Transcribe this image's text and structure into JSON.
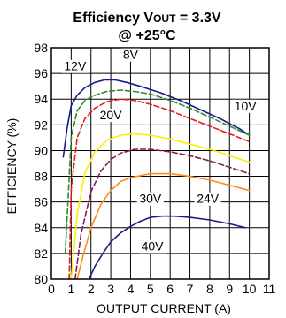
{
  "chart_data": {
    "type": "line",
    "title": {
      "prefix": "Efficiency V",
      "subscript": "OUT",
      "suffix": " = 3.3V",
      "line2": "@ +25°C"
    },
    "xlabel": "OUTPUT CURRENT (A)",
    "ylabel": "EFFICIENCY (%)",
    "xlim": [
      0,
      11
    ],
    "ylim": [
      80,
      98
    ],
    "xticks": [
      0,
      1,
      2,
      3,
      4,
      5,
      6,
      7,
      8,
      9,
      10,
      11
    ],
    "yticks": [
      80,
      82,
      84,
      86,
      88,
      90,
      92,
      94,
      96,
      98
    ],
    "grid": true,
    "series": [
      {
        "name": "8V",
        "color": "#1a1a8c",
        "dash": "solid",
        "x": [
          0.6,
          0.8,
          1.0,
          1.3,
          1.7,
          2.2,
          2.7,
          3.2,
          3.8,
          4.5,
          5.5,
          6.5,
          7.5,
          8.5,
          9.0,
          9.5,
          10.0
        ],
        "y": [
          89.5,
          91.8,
          93.5,
          94.3,
          94.9,
          95.3,
          95.5,
          95.5,
          95.3,
          95.0,
          94.5,
          93.9,
          93.2,
          92.5,
          92.1,
          91.7,
          91.2
        ]
      },
      {
        "name": "12V",
        "color": "#2e8b2e",
        "dash": "6,3",
        "x": [
          0.7,
          1.0,
          1.3,
          1.7,
          2.2,
          2.8,
          3.5,
          4.2,
          5.0,
          6.0,
          7.0,
          8.0,
          9.0,
          10.0
        ],
        "y": [
          82.0,
          91.0,
          93.1,
          93.9,
          94.3,
          94.6,
          94.7,
          94.6,
          94.4,
          93.9,
          93.3,
          92.6,
          91.9,
          91.2
        ]
      },
      {
        "name": "10V",
        "color": "#e02020",
        "dash": "6,3",
        "x": [
          0.9,
          1.0,
          1.3,
          1.7,
          2.2,
          2.8,
          3.5,
          4.2,
          5.0,
          6.0,
          7.0,
          8.0,
          9.0,
          10.0
        ],
        "y": [
          80.0,
          87.0,
          91.0,
          92.5,
          93.3,
          93.8,
          94.0,
          93.9,
          93.6,
          93.1,
          92.5,
          91.9,
          91.3,
          90.7
        ]
      },
      {
        "name": "20V",
        "color": "#ffee00",
        "dash": "solid",
        "x": [
          1.0,
          1.3,
          1.7,
          2.2,
          2.8,
          3.5,
          4.2,
          5.0,
          6.0,
          7.0,
          8.0,
          9.0,
          10.0
        ],
        "y": [
          80.0,
          85.0,
          88.3,
          89.9,
          90.8,
          91.2,
          91.3,
          91.2,
          90.9,
          90.5,
          90.1,
          89.6,
          89.1
        ]
      },
      {
        "name": "24V",
        "color": "#8b1a5a",
        "dash": "6,3",
        "x": [
          1.2,
          1.5,
          2.0,
          2.5,
          3.0,
          3.5,
          4.2,
          5.0,
          6.0,
          7.0,
          8.0,
          9.0,
          10.0
        ],
        "y": [
          80.0,
          83.5,
          86.8,
          88.4,
          89.3,
          89.8,
          90.1,
          90.1,
          89.9,
          89.6,
          89.2,
          88.7,
          88.2
        ]
      },
      {
        "name": "30V",
        "color": "#ff8c1a",
        "dash": "solid",
        "x": [
          1.3,
          1.6,
          2.0,
          2.5,
          3.0,
          3.5,
          4.0,
          5.0,
          6.0,
          7.0,
          8.0,
          9.0,
          10.0
        ],
        "y": [
          80.0,
          81.8,
          84.0,
          85.8,
          86.9,
          87.6,
          87.9,
          88.2,
          88.2,
          88.0,
          87.7,
          87.3,
          86.9
        ]
      },
      {
        "name": "40V",
        "color": "#1a1a8c",
        "dash": "solid",
        "x": [
          1.9,
          2.2,
          2.6,
          3.0,
          3.5,
          4.0,
          4.5,
          5.0,
          5.6,
          6.2,
          7.0,
          8.0,
          9.0,
          9.8
        ],
        "y": [
          80.0,
          81.0,
          82.0,
          82.9,
          83.6,
          84.1,
          84.5,
          84.8,
          84.9,
          84.9,
          84.8,
          84.6,
          84.3,
          84.0
        ]
      }
    ],
    "labels": [
      {
        "text": "12V",
        "x": 1.2,
        "y": 96.3
      },
      {
        "text": "8V",
        "x": 4.0,
        "y": 97.2
      },
      {
        "text": "10V",
        "x": 9.8,
        "y": 93.2
      },
      {
        "text": "20V",
        "x": 3.0,
        "y": 92.5
      },
      {
        "text": "24V",
        "x": 7.9,
        "y": 86.0
      },
      {
        "text": "30V",
        "x": 5.0,
        "y": 86.0
      },
      {
        "text": "40V",
        "x": 5.1,
        "y": 82.3
      }
    ]
  }
}
